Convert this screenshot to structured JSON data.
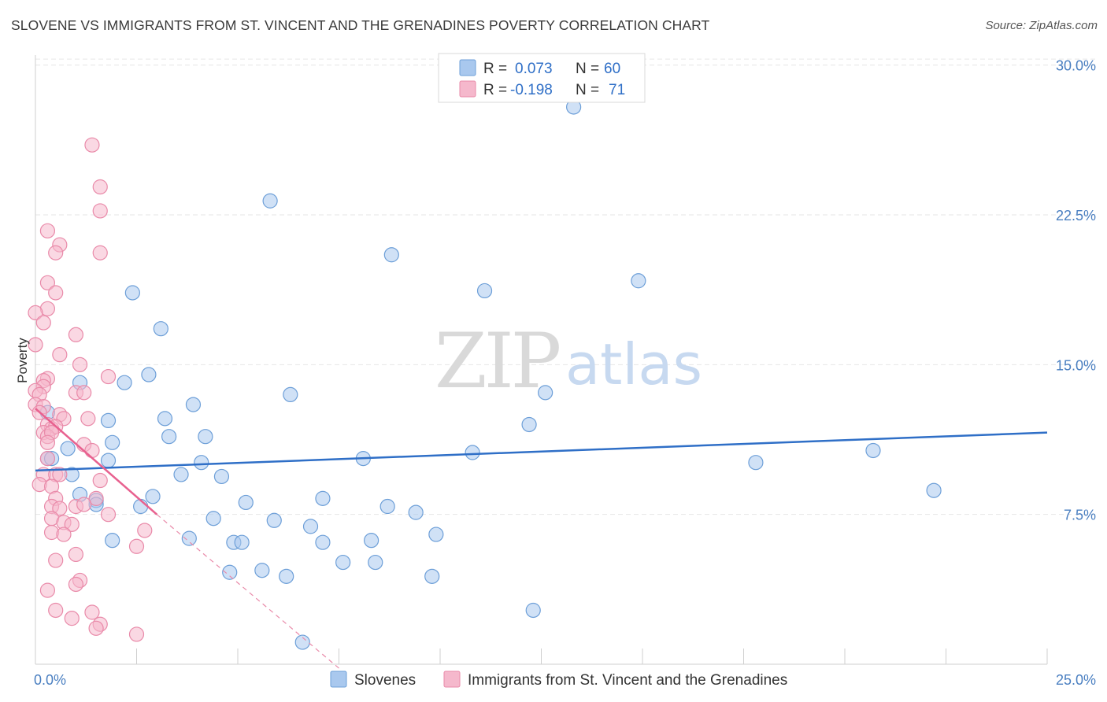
{
  "title": "SLOVENE VS IMMIGRANTS FROM ST. VINCENT AND THE GRENADINES POVERTY CORRELATION CHART",
  "source": "Source: ZipAtlas.com",
  "watermark": {
    "zip": "ZIP",
    "atlas": "atlas"
  },
  "legend_top": [
    {
      "r_label": "R =",
      "r_value": "0.073",
      "n_label": "N =",
      "n_value": "60"
    },
    {
      "r_label": "R =",
      "r_value": "-0.198",
      "n_label": "N =",
      "n_value": "71"
    }
  ],
  "colors": {
    "blue_fill": "#a9c8ee",
    "blue_stroke": "#6d9fd8",
    "blue_line": "#2f6fc7",
    "pink_fill": "#f5b8cc",
    "pink_stroke": "#e98aa9",
    "pink_line": "#e8618f",
    "grid": "#e6e6e6",
    "tick_text": "#4a7fc1"
  },
  "chart_data": {
    "type": "scatter",
    "title": "SLOVENE VS IMMIGRANTS FROM ST. VINCENT AND THE GRENADINES POVERTY CORRELATION CHART",
    "xlabel": "",
    "ylabel": "Poverty",
    "xlim": [
      0,
      25
    ],
    "ylim": [
      0,
      30.5
    ],
    "x_tick_labels": [
      "0.0%",
      "25.0%"
    ],
    "y_tick_labels": [
      "7.5%",
      "15.0%",
      "22.5%",
      "30.0%"
    ],
    "y_ticks": [
      7.5,
      15.0,
      22.5,
      30.0
    ],
    "grid": true,
    "legend_position": "top-center",
    "series": [
      {
        "name": "Slovenes",
        "color": "#a9c8ee",
        "trend": {
          "x": [
            0,
            25
          ],
          "y": [
            9.7,
            11.6
          ]
        },
        "points": [
          {
            "x": 13.3,
            "y": 27.9
          },
          {
            "x": 5.8,
            "y": 23.2
          },
          {
            "x": 8.8,
            "y": 20.5
          },
          {
            "x": 14.9,
            "y": 19.2
          },
          {
            "x": 2.4,
            "y": 18.6
          },
          {
            "x": 11.1,
            "y": 18.7
          },
          {
            "x": 3.1,
            "y": 16.8
          },
          {
            "x": 2.8,
            "y": 14.5
          },
          {
            "x": 2.2,
            "y": 14.1
          },
          {
            "x": 1.1,
            "y": 14.1
          },
          {
            "x": 6.3,
            "y": 13.5
          },
          {
            "x": 12.6,
            "y": 13.6
          },
          {
            "x": 3.9,
            "y": 13.0
          },
          {
            "x": 3.2,
            "y": 12.3
          },
          {
            "x": 1.8,
            "y": 12.2
          },
          {
            "x": 0.3,
            "y": 12.6
          },
          {
            "x": 12.2,
            "y": 12.0
          },
          {
            "x": 3.3,
            "y": 11.4
          },
          {
            "x": 4.2,
            "y": 11.4
          },
          {
            "x": 1.9,
            "y": 11.1
          },
          {
            "x": 0.8,
            "y": 10.8
          },
          {
            "x": 10.8,
            "y": 10.6
          },
          {
            "x": 20.7,
            "y": 10.7
          },
          {
            "x": 0.3,
            "y": 10.3
          },
          {
            "x": 0.4,
            "y": 10.3
          },
          {
            "x": 1.8,
            "y": 10.2
          },
          {
            "x": 8.1,
            "y": 10.3
          },
          {
            "x": 4.1,
            "y": 10.1
          },
          {
            "x": 17.8,
            "y": 10.1
          },
          {
            "x": 3.6,
            "y": 9.5
          },
          {
            "x": 4.6,
            "y": 9.4
          },
          {
            "x": 0.9,
            "y": 9.5
          },
          {
            "x": 1.1,
            "y": 8.5
          },
          {
            "x": 2.9,
            "y": 8.4
          },
          {
            "x": 22.2,
            "y": 8.7
          },
          {
            "x": 7.1,
            "y": 8.3
          },
          {
            "x": 1.5,
            "y": 8.2
          },
          {
            "x": 1.5,
            "y": 8.0
          },
          {
            "x": 5.2,
            "y": 8.1
          },
          {
            "x": 2.6,
            "y": 7.9
          },
          {
            "x": 8.7,
            "y": 7.9
          },
          {
            "x": 9.4,
            "y": 7.6
          },
          {
            "x": 4.4,
            "y": 7.3
          },
          {
            "x": 5.9,
            "y": 7.2
          },
          {
            "x": 6.8,
            "y": 6.9
          },
          {
            "x": 9.9,
            "y": 6.5
          },
          {
            "x": 1.9,
            "y": 6.2
          },
          {
            "x": 3.8,
            "y": 6.3
          },
          {
            "x": 4.9,
            "y": 6.1
          },
          {
            "x": 5.1,
            "y": 6.1
          },
          {
            "x": 7.1,
            "y": 6.1
          },
          {
            "x": 8.3,
            "y": 6.2
          },
          {
            "x": 7.6,
            "y": 5.1
          },
          {
            "x": 8.4,
            "y": 5.1
          },
          {
            "x": 4.8,
            "y": 4.6
          },
          {
            "x": 5.6,
            "y": 4.7
          },
          {
            "x": 6.2,
            "y": 4.4
          },
          {
            "x": 9.8,
            "y": 4.4
          },
          {
            "x": 12.3,
            "y": 2.7
          },
          {
            "x": 6.6,
            "y": 1.1
          }
        ]
      },
      {
        "name": "Immigrants from St. Vincent and the Grenadines",
        "color": "#f5b8cc",
        "trend": {
          "x": [
            0,
            3.0
          ],
          "y": [
            12.8,
            7.5
          ]
        },
        "trend_extension": {
          "x": [
            3.0,
            7.5
          ],
          "y": [
            7.5,
            -0.2
          ]
        },
        "points": [
          {
            "x": 1.4,
            "y": 26.0
          },
          {
            "x": 1.6,
            "y": 23.9
          },
          {
            "x": 1.6,
            "y": 22.7
          },
          {
            "x": 0.3,
            "y": 21.7
          },
          {
            "x": 0.6,
            "y": 21.0
          },
          {
            "x": 0.5,
            "y": 20.6
          },
          {
            "x": 1.6,
            "y": 20.6
          },
          {
            "x": 0.3,
            "y": 19.1
          },
          {
            "x": 0.5,
            "y": 18.6
          },
          {
            "x": 0.3,
            "y": 17.8
          },
          {
            "x": 0.0,
            "y": 17.6
          },
          {
            "x": 0.2,
            "y": 17.1
          },
          {
            "x": 1.0,
            "y": 16.5
          },
          {
            "x": 0.0,
            "y": 16.0
          },
          {
            "x": 0.6,
            "y": 15.5
          },
          {
            "x": 1.1,
            "y": 15.0
          },
          {
            "x": 0.3,
            "y": 14.3
          },
          {
            "x": 0.2,
            "y": 14.2
          },
          {
            "x": 1.8,
            "y": 14.4
          },
          {
            "x": 0.2,
            "y": 13.9
          },
          {
            "x": 0.0,
            "y": 13.7
          },
          {
            "x": 0.1,
            "y": 13.5
          },
          {
            "x": 1.0,
            "y": 13.6
          },
          {
            "x": 1.2,
            "y": 13.6
          },
          {
            "x": 0.0,
            "y": 13.0
          },
          {
            "x": 0.2,
            "y": 12.9
          },
          {
            "x": 0.1,
            "y": 12.6
          },
          {
            "x": 0.6,
            "y": 12.5
          },
          {
            "x": 0.7,
            "y": 12.3
          },
          {
            "x": 1.3,
            "y": 12.3
          },
          {
            "x": 0.3,
            "y": 12.0
          },
          {
            "x": 0.4,
            "y": 11.8
          },
          {
            "x": 0.5,
            "y": 11.9
          },
          {
            "x": 0.2,
            "y": 11.6
          },
          {
            "x": 0.3,
            "y": 11.4
          },
          {
            "x": 0.4,
            "y": 11.6
          },
          {
            "x": 0.3,
            "y": 11.1
          },
          {
            "x": 1.2,
            "y": 11.0
          },
          {
            "x": 1.4,
            "y": 10.7
          },
          {
            "x": 0.3,
            "y": 10.3
          },
          {
            "x": 0.2,
            "y": 9.5
          },
          {
            "x": 0.5,
            "y": 9.5
          },
          {
            "x": 0.6,
            "y": 9.5
          },
          {
            "x": 0.1,
            "y": 9.0
          },
          {
            "x": 0.4,
            "y": 8.9
          },
          {
            "x": 1.6,
            "y": 9.2
          },
          {
            "x": 0.5,
            "y": 8.3
          },
          {
            "x": 1.5,
            "y": 8.3
          },
          {
            "x": 0.4,
            "y": 7.9
          },
          {
            "x": 0.6,
            "y": 7.8
          },
          {
            "x": 1.0,
            "y": 7.9
          },
          {
            "x": 1.2,
            "y": 8.0
          },
          {
            "x": 1.8,
            "y": 7.5
          },
          {
            "x": 0.4,
            "y": 7.3
          },
          {
            "x": 0.7,
            "y": 7.1
          },
          {
            "x": 0.9,
            "y": 7.0
          },
          {
            "x": 0.4,
            "y": 6.6
          },
          {
            "x": 0.7,
            "y": 6.5
          },
          {
            "x": 2.7,
            "y": 6.7
          },
          {
            "x": 2.5,
            "y": 5.9
          },
          {
            "x": 1.0,
            "y": 5.5
          },
          {
            "x": 0.5,
            "y": 5.2
          },
          {
            "x": 1.1,
            "y": 4.2
          },
          {
            "x": 1.0,
            "y": 4.0
          },
          {
            "x": 0.3,
            "y": 3.7
          },
          {
            "x": 0.5,
            "y": 2.7
          },
          {
            "x": 1.4,
            "y": 2.6
          },
          {
            "x": 1.6,
            "y": 2.0
          },
          {
            "x": 1.5,
            "y": 1.8
          },
          {
            "x": 2.5,
            "y": 1.5
          },
          {
            "x": 0.9,
            "y": 2.3
          }
        ]
      }
    ]
  }
}
